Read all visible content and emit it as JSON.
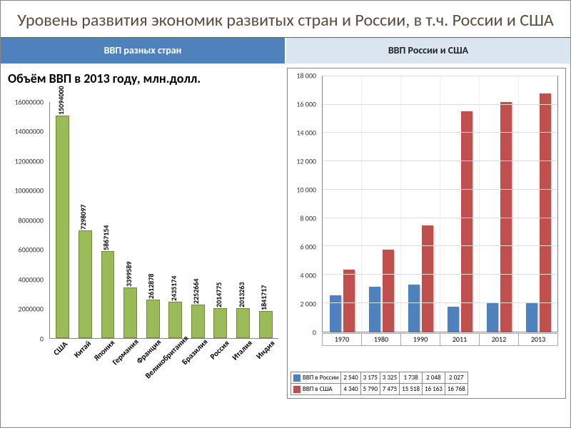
{
  "title": "Уровень развития экономик развитых стран и России, в т.ч. России и США",
  "title_fontsize": 24,
  "title_color": "#5c4a3a",
  "header": {
    "left": {
      "label": "ВВП разных стран",
      "bg": "#4f81bd",
      "color": "#ffffff"
    },
    "right": {
      "label": "ВВП России и США",
      "bg": "#dbe5f1",
      "color": "#222222"
    },
    "fontsize": 14
  },
  "chart_left": {
    "type": "bar",
    "title": "Объём ВВП в 2013 году, млн.долл.",
    "title_fontsize": 18,
    "bar_color": "#9bbb59",
    "bar_border": "#71893f",
    "ylim": [
      0,
      16000000
    ],
    "ytick_step": 2000000,
    "yticks": [
      "0",
      "2000000",
      "4000000",
      "6000000",
      "8000000",
      "10000000",
      "12000000",
      "14000000",
      "16000000"
    ],
    "categories": [
      "США",
      "Китай",
      "Япония",
      "Германия",
      "Франция",
      "Великобритания",
      "Бразилия",
      "Россия",
      "Италия",
      "Индия"
    ],
    "values": [
      15094000,
      7298097,
      5867154,
      3399589,
      2612878,
      2435174,
      2252664,
      2014775,
      2013263,
      1841717
    ],
    "value_labels": [
      "15094000",
      "7298097",
      "5867154",
      "3399589",
      "2612878",
      "2435174",
      "2252664",
      "2014775",
      "2013263",
      "1841717"
    ],
    "label_fontsize": 10
  },
  "chart_right": {
    "type": "grouped-bar",
    "ylim": [
      0,
      18000
    ],
    "ytick_step": 2000,
    "yticks": [
      "0",
      "2 000",
      "4 000",
      "6 000",
      "8 000",
      "10 000",
      "12 000",
      "14 000",
      "16 000",
      "18 000"
    ],
    "grid_color": "#dddddd",
    "border_color": "#888888",
    "categories": [
      "1970",
      "1980",
      "1990",
      "2011",
      "2012",
      "2013"
    ],
    "series": [
      {
        "name": "ВВП в России",
        "color": "#4f81bd",
        "values": [
          2540,
          3175,
          3325,
          1738,
          2048,
          2027
        ],
        "table_labels": [
          "2 540",
          "3 175",
          "3 325",
          "1 738",
          "2 048",
          "2 027"
        ]
      },
      {
        "name": "ВВП в США",
        "color": "#c0504d",
        "values": [
          4340,
          5790,
          7475,
          15518,
          16163,
          16768
        ],
        "table_labels": [
          "4 340",
          "5 790",
          "7 475",
          "15 518",
          "16 163",
          "16 768"
        ]
      }
    ],
    "label_fontsize": 10
  }
}
